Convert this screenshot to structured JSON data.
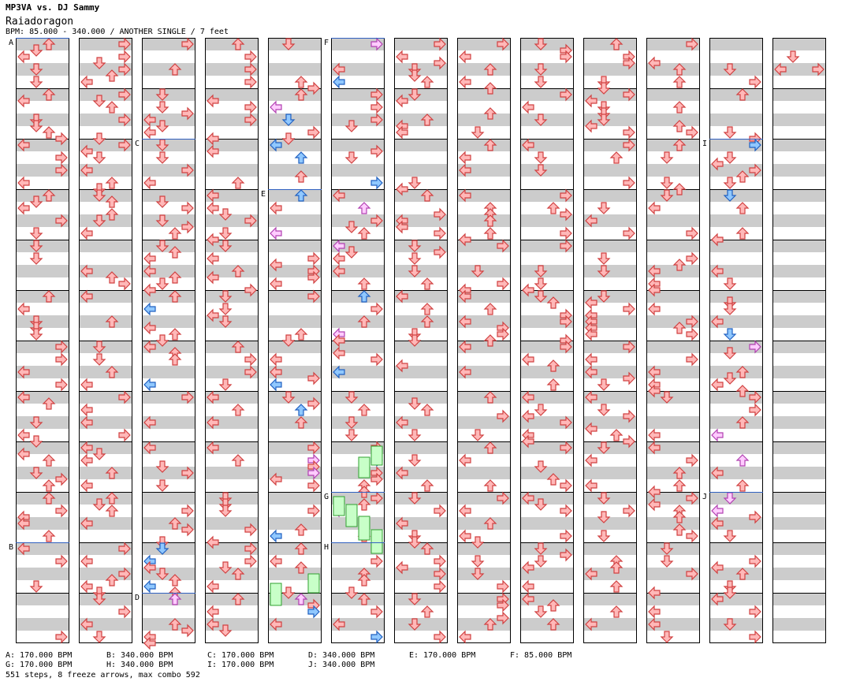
{
  "header": {
    "artist": "MP3VA vs. DJ Sammy",
    "title": "Raiadoragon",
    "meta": "BPM: 85.000 - 340.000 / ANOTHER SINGLE / 7 feet"
  },
  "section_markers": [
    "A",
    "B",
    "C",
    "D",
    "E",
    "F",
    "G",
    "H",
    "I",
    "J"
  ],
  "bpm_rows": [
    [
      "A: 170.000 BPM",
      "B: 340.000 BPM",
      "C: 170.000 BPM",
      "D: 340.000 BPM",
      "E: 170.000 BPM",
      "F: 85.000 BPM"
    ],
    [
      "G: 170.000 BPM",
      "H: 340.000 BPM",
      "I: 170.000 BPM",
      "J: 340.000 BPM"
    ]
  ],
  "summary": "551 steps, 8 freeze arrows, max combo 592",
  "colors": {
    "stripe": "#cccccc",
    "note_red_fill": "#ffb8b8",
    "note_red_stroke": "#d04040",
    "note_blue_fill": "#90c8ff",
    "note_blue_stroke": "#2060c0",
    "note_pink_fill": "#ffccff",
    "note_pink_stroke": "#b040b0",
    "freeze_fill": "#c8ffc8",
    "freeze_stroke": "#30a030",
    "marker_line": "#3060c0"
  },
  "icons": {
    "left": "left-arrow-icon",
    "down": "down-arrow-icon",
    "up": "up-arrow-icon",
    "right": "right-arrow-icon"
  }
}
